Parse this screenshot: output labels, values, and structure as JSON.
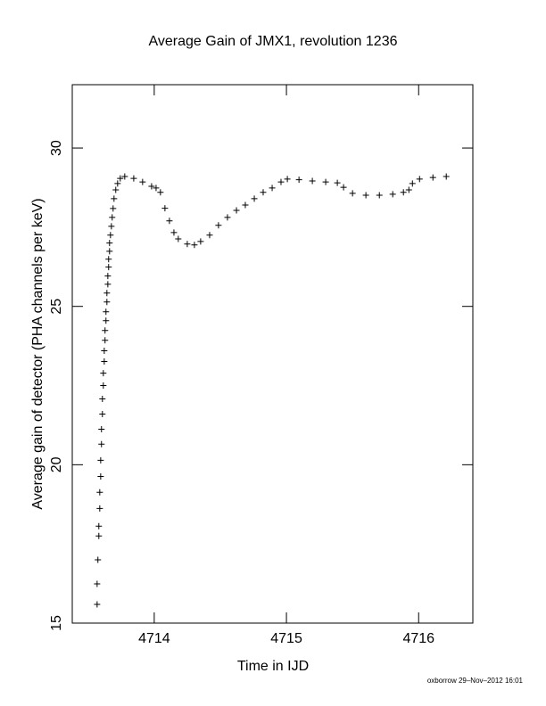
{
  "chart_data": {
    "type": "scatter",
    "title": "Average Gain of JMX1, revolution 1236",
    "x_label": "Time in IJD",
    "y_label": "Average gain of detector (PHA channels per keV)",
    "footer": "oxborrow 29–Nov–2012 16:01",
    "color": "#000000",
    "marker": "+",
    "xlim": [
      4713.38,
      4716.41
    ],
    "ylim": [
      15,
      32
    ],
    "xticks": [
      4714,
      4715,
      4716
    ],
    "yticks": [
      15,
      20,
      25,
      30
    ],
    "x": [
      4713.568,
      4713.568,
      4713.574,
      4713.581,
      4713.581,
      4713.588,
      4713.588,
      4713.595,
      4713.595,
      4713.601,
      4713.601,
      4713.608,
      4713.608,
      4713.615,
      4713.615,
      4713.622,
      4713.622,
      4713.628,
      4713.628,
      4713.635,
      4713.635,
      4713.642,
      4713.642,
      4713.649,
      4713.649,
      4713.655,
      4713.655,
      4713.662,
      4713.662,
      4713.669,
      4713.676,
      4713.682,
      4713.689,
      4713.696,
      4713.709,
      4713.723,
      4713.743,
      4713.777,
      4713.845,
      4713.912,
      4713.98,
      4714.014,
      4714.047,
      4714.081,
      4714.115,
      4714.149,
      4714.182,
      4714.25,
      4714.304,
      4714.351,
      4714.419,
      4714.486,
      4714.554,
      4714.622,
      4714.689,
      4714.757,
      4714.824,
      4714.892,
      4714.959,
      4715.007,
      4715.095,
      4715.196,
      4715.297,
      4715.385,
      4715.432,
      4715.5,
      4715.601,
      4715.703,
      4715.804,
      4715.885,
      4715.926,
      4715.953,
      4716.007,
      4716.108,
      4716.209
    ],
    "values": [
      15.59,
      16.24,
      17.0,
      17.75,
      18.06,
      18.62,
      19.13,
      19.63,
      20.14,
      20.65,
      21.12,
      21.6,
      22.08,
      22.5,
      22.89,
      23.26,
      23.6,
      23.93,
      24.24,
      24.55,
      24.83,
      25.14,
      25.42,
      25.7,
      25.96,
      26.24,
      26.49,
      26.74,
      27.0,
      27.25,
      27.53,
      27.81,
      28.09,
      28.4,
      28.68,
      28.88,
      29.04,
      29.1,
      29.04,
      28.93,
      28.79,
      28.74,
      28.6,
      28.1,
      27.7,
      27.33,
      27.13,
      26.97,
      26.94,
      27.05,
      27.25,
      27.56,
      27.81,
      28.03,
      28.2,
      28.4,
      28.6,
      28.74,
      28.93,
      29.02,
      29.0,
      28.96,
      28.93,
      28.9,
      28.76,
      28.57,
      28.51,
      28.51,
      28.54,
      28.6,
      28.68,
      28.88,
      29.02,
      29.07,
      29.1
    ]
  }
}
